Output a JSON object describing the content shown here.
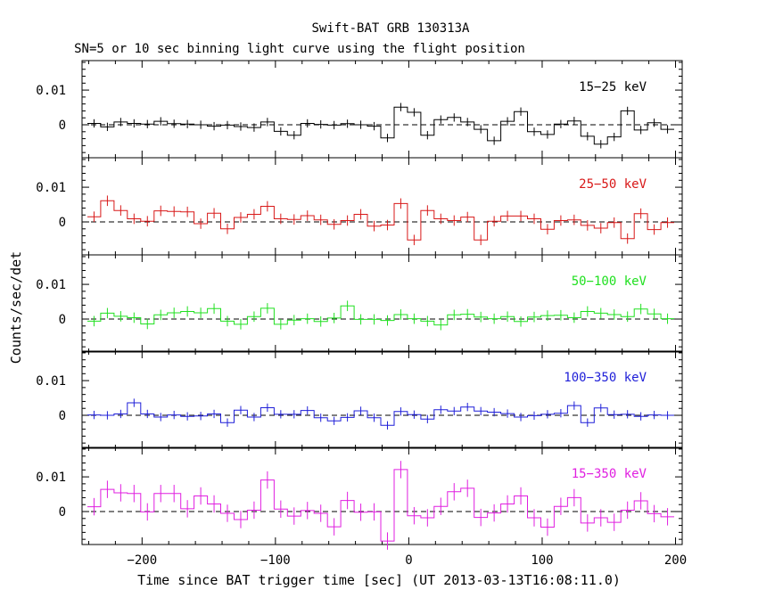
{
  "chart_data": {
    "type": "line",
    "title": "Swift-BAT GRB 130313A",
    "subtitle": "SN=5 or 10 sec binning light curve using the flight position",
    "xlabel": "Time since BAT trigger time [sec] (UT 2013-03-13T16:08:11.0)",
    "ylabel": "Counts/sec/det",
    "xlim": [
      -245,
      205
    ],
    "ylim": [
      -0.0095,
      0.0185
    ],
    "x_ticks": [
      {
        "value": -200,
        "label": "−200"
      },
      {
        "value": -100,
        "label": "−100"
      },
      {
        "value": 0,
        "label": "0"
      },
      {
        "value": 100,
        "label": "100"
      },
      {
        "value": 200,
        "label": "200"
      }
    ],
    "y_ticks": [
      {
        "value": 0,
        "label": "0"
      },
      {
        "value": 0.01,
        "label": "0.01"
      }
    ],
    "bin_width": 10,
    "x": [
      -236,
      -226,
      -216,
      -206,
      -196,
      -186,
      -176,
      -166,
      -156,
      -146,
      -136,
      -126,
      -116,
      -106,
      -96,
      -86,
      -76,
      -66,
      -56,
      -46,
      -36,
      -26,
      -16,
      -6,
      4,
      14,
      24,
      34,
      44,
      54,
      64,
      74,
      84,
      94,
      104,
      114,
      124,
      134,
      144,
      154,
      164,
      174,
      184,
      194
    ],
    "series": [
      {
        "name": "15−25 keV",
        "color": "#000000",
        "values": [
          0.0004,
          -0.0006,
          0.0008,
          0.0004,
          0.0002,
          0.001,
          0.0003,
          0.0002,
          0,
          -0.0004,
          -0.0001,
          -0.0005,
          -0.0008,
          0.0008,
          -0.0019,
          -0.003,
          0.0004,
          0.0001,
          -0.0001,
          0.0003,
          0,
          -0.0004,
          -0.0038,
          0.0051,
          0.0036,
          -0.003,
          0.0015,
          0.0021,
          0.0008,
          -0.0013,
          -0.0046,
          0.001,
          0.0038,
          -0.002,
          -0.0028,
          0.0002,
          0.0011,
          -0.0033,
          -0.0056,
          -0.0035,
          0.004,
          -0.0015,
          0.0006,
          -0.0013
        ],
        "errors": [
          0.0012,
          0.0012,
          0.0012,
          0.0012,
          0.0012,
          0.0012,
          0.0012,
          0.0012,
          0.0012,
          0.0012,
          0.0012,
          0.0012,
          0.0012,
          0.0012,
          0.0012,
          0.0012,
          0.0012,
          0.0012,
          0.0012,
          0.0012,
          0.0012,
          0.0012,
          0.0012,
          0.0012,
          0.0012,
          0.0012,
          0.0012,
          0.0012,
          0.0012,
          0.0012,
          0.0012,
          0.0012,
          0.0012,
          0.0012,
          0.0012,
          0.0012,
          0.0012,
          0.0012,
          0.0012,
          0.0012,
          0.0012,
          0.0012,
          0.0012,
          0.0012
        ]
      },
      {
        "name": "25−50 keV",
        "color": "#d81818",
        "values": [
          0.0015,
          0.0061,
          0.0033,
          0.0009,
          0.0002,
          0.0032,
          0.003,
          0.0029,
          -0.0005,
          0.0025,
          -0.002,
          0.0013,
          0.0022,
          0.0045,
          0.0009,
          0.0007,
          0.0018,
          0.0006,
          -0.0007,
          0.0004,
          0.0022,
          -0.0012,
          -0.0009,
          0.0053,
          -0.0052,
          0.0033,
          0.0009,
          0.0004,
          0.0014,
          -0.0052,
          0.0002,
          0.0017,
          0.0017,
          0.0009,
          -0.0021,
          0.0004,
          0.0006,
          -0.001,
          -0.0018,
          -0.0002,
          -0.0048,
          0.0024,
          -0.0022,
          -0.0002
        ],
        "errors": [
          0.0015,
          0.0015,
          0.0015,
          0.0015,
          0.0015,
          0.0015,
          0.0015,
          0.0015,
          0.0015,
          0.0015,
          0.0015,
          0.0015,
          0.0015,
          0.0015,
          0.0015,
          0.0015,
          0.0015,
          0.0015,
          0.0015,
          0.0015,
          0.0015,
          0.0015,
          0.0015,
          0.0015,
          0.0015,
          0.0015,
          0.0015,
          0.0015,
          0.0015,
          0.0015,
          0.0015,
          0.0015,
          0.0015,
          0.0015,
          0.0015,
          0.0015,
          0.0015,
          0.0015,
          0.0015,
          0.0015,
          0.0015,
          0.0015,
          0.0015,
          0.0015
        ]
      },
      {
        "name": "50−100 keV",
        "color": "#20e020",
        "values": [
          -0.0006,
          0.0017,
          0.0008,
          0.0004,
          -0.0014,
          0.0012,
          0.0018,
          0.0022,
          0.0018,
          0.003,
          -0.0006,
          -0.0015,
          0.0007,
          0.0031,
          -0.0015,
          -0.0003,
          0.0001,
          -0.0007,
          0.0003,
          0.0038,
          -0.0001,
          -0.0001,
          -0.0004,
          0.0013,
          0.0001,
          -0.0006,
          -0.0017,
          0.0012,
          0.0014,
          0.0006,
          0.0001,
          0.0007,
          -0.0007,
          0.0006,
          0.001,
          0.0011,
          0.0004,
          0.0022,
          0.0017,
          0.0013,
          0.0007,
          0.0029,
          0.0015,
          0.0001
        ],
        "errors": [
          0.0015,
          0.0015,
          0.0015,
          0.0015,
          0.0015,
          0.0015,
          0.0015,
          0.0015,
          0.0015,
          0.0015,
          0.0015,
          0.0015,
          0.0015,
          0.0015,
          0.0015,
          0.0015,
          0.0015,
          0.0015,
          0.0015,
          0.0015,
          0.0015,
          0.0015,
          0.0015,
          0.0015,
          0.0015,
          0.0015,
          0.0015,
          0.0015,
          0.0015,
          0.0015,
          0.0015,
          0.0015,
          0.0015,
          0.0015,
          0.0015,
          0.0015,
          0.0015,
          0.0015,
          0.0015,
          0.0015,
          0.0015,
          0.0015,
          0.0015,
          0.0015
        ]
      },
      {
        "name": "100−350 keV",
        "color": "#1f1fd8",
        "values": [
          0.0001,
          0,
          0.0004,
          0.0036,
          0.0004,
          -0.0005,
          0.0001,
          -0.0003,
          -0.0002,
          0.0004,
          -0.0021,
          0.0015,
          -0.0005,
          0.0022,
          0.0003,
          0.0003,
          0.0014,
          -0.0007,
          -0.0016,
          -0.0006,
          0.0013,
          -0.0007,
          -0.0029,
          0.0011,
          0.0002,
          -0.0011,
          0.0016,
          0.0012,
          0.0024,
          0.0012,
          0.0009,
          0.0005,
          -0.0005,
          -0.0001,
          0.0003,
          0.0006,
          0.0028,
          -0.0021,
          0.0021,
          0.0002,
          0.0003,
          -0.0003,
          0.0001,
          0
        ],
        "errors": [
          0.0012,
          0.0012,
          0.0012,
          0.0012,
          0.0012,
          0.0012,
          0.0012,
          0.0012,
          0.0012,
          0.0012,
          0.0012,
          0.0012,
          0.0012,
          0.0012,
          0.0012,
          0.0012,
          0.0012,
          0.0012,
          0.0012,
          0.0012,
          0.0012,
          0.0012,
          0.0012,
          0.0012,
          0.0012,
          0.0012,
          0.0012,
          0.0012,
          0.0012,
          0.0012,
          0.0012,
          0.0012,
          0.0012,
          0.0012,
          0.0012,
          0.0012,
          0.0012,
          0.0012,
          0.0012,
          0.0012,
          0.0012,
          0.0012,
          0.0012,
          0.0012
        ]
      },
      {
        "name": "15−350 keV",
        "color": "#e01fe0",
        "values": [
          0.0014,
          0.0064,
          0.0054,
          0.0052,
          -0.0001,
          0.0052,
          0.0052,
          0.0008,
          0.0045,
          0.0022,
          -0.0005,
          -0.0023,
          0.0004,
          0.0091,
          0.0007,
          -0.0013,
          0.0003,
          -0.0005,
          -0.0044,
          0.0032,
          -0.0002,
          -0.0001,
          -0.0085,
          0.0121,
          -0.0012,
          -0.0018,
          0.0015,
          0.0057,
          0.0067,
          -0.0017,
          -0.0004,
          0.0022,
          0.0045,
          -0.0018,
          -0.0045,
          0.0015,
          0.004,
          -0.0033,
          -0.0018,
          -0.0031,
          0.0004,
          0.0031,
          -0.0006,
          -0.0015
        ],
        "errors": [
          0.0025,
          0.0025,
          0.0025,
          0.0025,
          0.0025,
          0.0025,
          0.0025,
          0.0025,
          0.0025,
          0.0025,
          0.0025,
          0.0025,
          0.0025,
          0.0025,
          0.0025,
          0.0025,
          0.0025,
          0.0025,
          0.0025,
          0.0025,
          0.0025,
          0.0025,
          0.0025,
          0.0025,
          0.0025,
          0.0025,
          0.0025,
          0.0025,
          0.0025,
          0.0025,
          0.0025,
          0.0025,
          0.0025,
          0.0025,
          0.0025,
          0.0025,
          0.0025,
          0.0025,
          0.0025,
          0.0025,
          0.0025,
          0.0025,
          0.0025,
          0.0025
        ]
      }
    ]
  }
}
